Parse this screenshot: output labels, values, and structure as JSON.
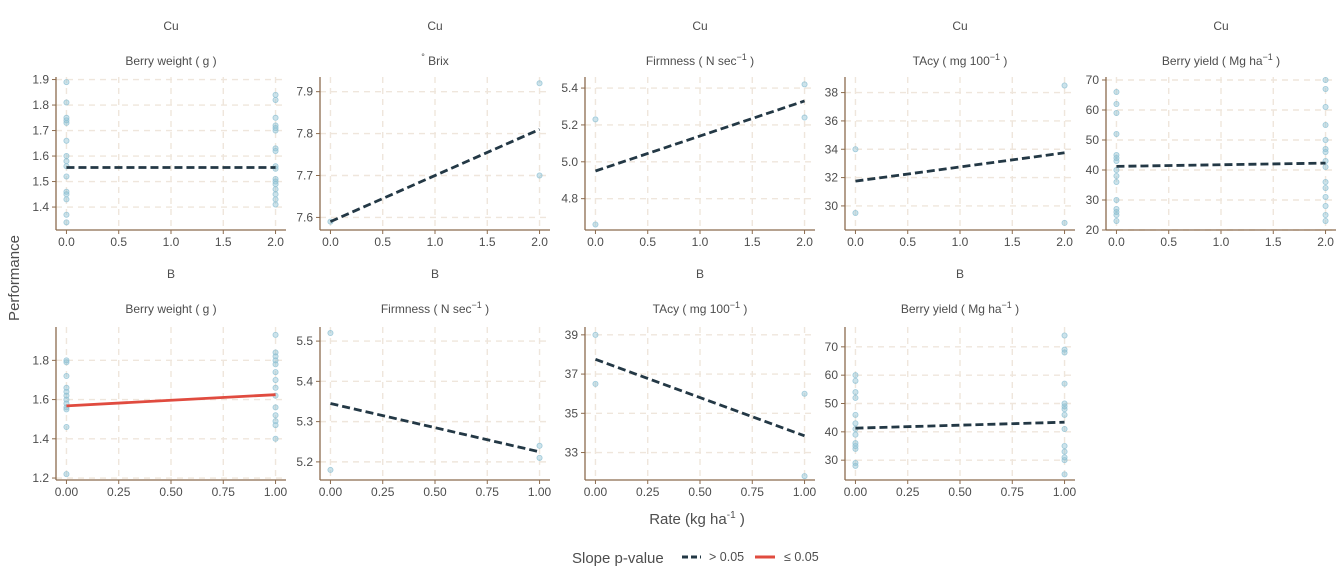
{
  "chart_data": {
    "type": "scatter",
    "y_axis_title": "Performance",
    "x_axis_title": {
      "main": "Rate (kg ha",
      "sup": "-1",
      "tail": ")"
    },
    "legend": {
      "title": "Slope p-value",
      "items": [
        {
          "label": "> 0.05",
          "color": "#233845"
        },
        {
          "label": "≤ 0.05",
          "color": "#e04b3f"
        }
      ],
      "position": "bottom"
    },
    "point_color": "#8fc1d3",
    "grid_color": "#efe6dc",
    "axis_color": "#8b6b4e",
    "panels": [
      {
        "row": 0,
        "col": 0,
        "element": "Cu",
        "label": {
          "parts": [
            {
              "t": "Berry weight  (  g  )"
            }
          ]
        },
        "xlim": [
          -0.1,
          2.1
        ],
        "ylim": [
          1.31,
          1.91
        ],
        "xticks": [
          0,
          0.5,
          1,
          1.5,
          2
        ],
        "xtick_labels": [
          "0.0",
          "0.5",
          "1.0",
          "1.5",
          "2.0"
        ],
        "yticks": [
          1.4,
          1.5,
          1.6,
          1.7,
          1.8,
          1.9
        ],
        "ytick_labels": [
          "1.4",
          "1.5",
          "1.6",
          "1.7",
          "1.8",
          "1.9"
        ],
        "points": [
          [
            0,
            1.89
          ],
          [
            0,
            1.81
          ],
          [
            0,
            1.75
          ],
          [
            0,
            1.74
          ],
          [
            0,
            1.73
          ],
          [
            0,
            1.66
          ],
          [
            0,
            1.6
          ],
          [
            0,
            1.58
          ],
          [
            0,
            1.56
          ],
          [
            0,
            1.52
          ],
          [
            0,
            1.46
          ],
          [
            0,
            1.45
          ],
          [
            0,
            1.43
          ],
          [
            0,
            1.37
          ],
          [
            0,
            1.34
          ],
          [
            2,
            1.84
          ],
          [
            2,
            1.82
          ],
          [
            2,
            1.75
          ],
          [
            2,
            1.72
          ],
          [
            2,
            1.71
          ],
          [
            2,
            1.7
          ],
          [
            2,
            1.63
          ],
          [
            2,
            1.62
          ],
          [
            2,
            1.56
          ],
          [
            2,
            1.55
          ],
          [
            2,
            1.51
          ],
          [
            2,
            1.5
          ],
          [
            2,
            1.49
          ],
          [
            2,
            1.47
          ],
          [
            2,
            1.45
          ],
          [
            2,
            1.43
          ],
          [
            2,
            1.41
          ]
        ],
        "fit": {
          "x": [
            0,
            2
          ],
          "y": [
            1.555,
            1.555
          ],
          "significant": false
        }
      },
      {
        "row": 0,
        "col": 1,
        "element": "Cu",
        "label": {
          "parts": [
            {
              "t": "°",
              "sup": true
            },
            {
              "t": " Brix"
            }
          ]
        },
        "xlim": [
          -0.1,
          2.1
        ],
        "ylim": [
          7.57,
          7.935
        ],
        "xticks": [
          0,
          0.5,
          1,
          1.5,
          2
        ],
        "xtick_labels": [
          "0.0",
          "0.5",
          "1.0",
          "1.5",
          "2.0"
        ],
        "yticks": [
          7.6,
          7.7,
          7.8,
          7.9
        ],
        "ytick_labels": [
          "7.6",
          "7.7",
          "7.8",
          "7.9"
        ],
        "points": [
          [
            0,
            7.59
          ],
          [
            2,
            7.92
          ],
          [
            2,
            7.7
          ]
        ],
        "fit": {
          "x": [
            0,
            2
          ],
          "y": [
            7.59,
            7.81
          ],
          "significant": false
        }
      },
      {
        "row": 0,
        "col": 2,
        "element": "Cu",
        "label": {
          "parts": [
            {
              "t": "Firmness  (  N  sec"
            },
            {
              "t": "−1",
              "sup": true
            },
            {
              "t": "  )"
            }
          ]
        },
        "xlim": [
          -0.1,
          2.1
        ],
        "ylim": [
          4.63,
          5.46
        ],
        "xticks": [
          0,
          0.5,
          1,
          1.5,
          2
        ],
        "xtick_labels": [
          "0.0",
          "0.5",
          "1.0",
          "1.5",
          "2.0"
        ],
        "yticks": [
          4.8,
          5.0,
          5.2,
          5.4
        ],
        "ytick_labels": [
          "4.8",
          "5.0",
          "5.2",
          "5.4"
        ],
        "points": [
          [
            0,
            5.23
          ],
          [
            0,
            4.66
          ],
          [
            2,
            5.42
          ],
          [
            2,
            5.24
          ]
        ],
        "fit": {
          "x": [
            0,
            2
          ],
          "y": [
            4.95,
            5.33
          ],
          "significant": false
        }
      },
      {
        "row": 0,
        "col": 3,
        "element": "Cu",
        "label": {
          "parts": [
            {
              "t": "TAcy  (  mg  100"
            },
            {
              "t": "−1",
              "sup": true
            },
            {
              "t": "  )"
            }
          ]
        },
        "xlim": [
          -0.1,
          2.1
        ],
        "ylim": [
          28.3,
          39.1
        ],
        "xticks": [
          0,
          0.5,
          1,
          1.5,
          2
        ],
        "xtick_labels": [
          "0.0",
          "0.5",
          "1.0",
          "1.5",
          "2.0"
        ],
        "yticks": [
          30,
          32,
          34,
          36,
          38
        ],
        "ytick_labels": [
          "30",
          "32",
          "34",
          "36",
          "38"
        ],
        "points": [
          [
            0,
            34
          ],
          [
            0,
            29.5
          ],
          [
            2,
            38.5
          ],
          [
            2,
            28.8
          ]
        ],
        "fit": {
          "x": [
            0,
            2
          ],
          "y": [
            31.75,
            33.75
          ],
          "significant": false
        }
      },
      {
        "row": 0,
        "col": 4,
        "element": "Cu",
        "label": {
          "parts": [
            {
              "t": "Berry yield  (  Mg  ha"
            },
            {
              "t": "−1",
              "sup": true
            },
            {
              "t": "  )"
            }
          ]
        },
        "xlim": [
          -0.1,
          2.1
        ],
        "ylim": [
          20,
          71
        ],
        "xticks": [
          0,
          0.5,
          1,
          1.5,
          2
        ],
        "xtick_labels": [
          "0.0",
          "0.5",
          "1.0",
          "1.5",
          "2.0"
        ],
        "yticks": [
          20,
          30,
          40,
          50,
          60,
          70
        ],
        "ytick_labels": [
          "20",
          "30",
          "40",
          "50",
          "60",
          "70"
        ],
        "points": [
          [
            0,
            66
          ],
          [
            0,
            62
          ],
          [
            0,
            59
          ],
          [
            0,
            52
          ],
          [
            0,
            45
          ],
          [
            0,
            44
          ],
          [
            0,
            43
          ],
          [
            0,
            40
          ],
          [
            0,
            38
          ],
          [
            0,
            36
          ],
          [
            0,
            30
          ],
          [
            0,
            27
          ],
          [
            0,
            26
          ],
          [
            0,
            25
          ],
          [
            0,
            23
          ],
          [
            2,
            70
          ],
          [
            2,
            67
          ],
          [
            2,
            61
          ],
          [
            2,
            55
          ],
          [
            2,
            50
          ],
          [
            2,
            47
          ],
          [
            2,
            46
          ],
          [
            2,
            43
          ],
          [
            2,
            41
          ],
          [
            2,
            36
          ],
          [
            2,
            34
          ],
          [
            2,
            31
          ],
          [
            2,
            28
          ],
          [
            2,
            25
          ],
          [
            2,
            23
          ]
        ],
        "fit": {
          "x": [
            0,
            2
          ],
          "y": [
            41.2,
            42.3
          ],
          "significant": false
        }
      },
      {
        "row": 1,
        "col": 0,
        "element": "B",
        "label": {
          "parts": [
            {
              "t": "Berry weight  (  g  )"
            }
          ]
        },
        "xlim": [
          -0.05,
          1.05
        ],
        "ylim": [
          1.19,
          1.97
        ],
        "xticks": [
          0,
          0.25,
          0.5,
          0.75,
          1
        ],
        "xtick_labels": [
          "0.00",
          "0.25",
          "0.50",
          "0.75",
          "1.00"
        ],
        "yticks": [
          1.2,
          1.4,
          1.6,
          1.8
        ],
        "ytick_labels": [
          "1.2",
          "1.4",
          "1.6",
          "1.8"
        ],
        "points": [
          [
            0,
            1.8
          ],
          [
            0,
            1.79
          ],
          [
            0,
            1.72
          ],
          [
            0,
            1.66
          ],
          [
            0,
            1.64
          ],
          [
            0,
            1.62
          ],
          [
            0,
            1.6
          ],
          [
            0,
            1.58
          ],
          [
            0,
            1.56
          ],
          [
            0,
            1.55
          ],
          [
            0,
            1.46
          ],
          [
            0,
            1.22
          ],
          [
            1,
            1.93
          ],
          [
            1,
            1.84
          ],
          [
            1,
            1.82
          ],
          [
            1,
            1.8
          ],
          [
            1,
            1.78
          ],
          [
            1,
            1.74
          ],
          [
            1,
            1.7
          ],
          [
            1,
            1.66
          ],
          [
            1,
            1.62
          ],
          [
            1,
            1.56
          ],
          [
            1,
            1.52
          ],
          [
            1,
            1.49
          ],
          [
            1,
            1.47
          ],
          [
            1,
            1.4
          ]
        ],
        "fit": {
          "x": [
            0,
            1
          ],
          "y": [
            1.568,
            1.625
          ],
          "significant": true
        }
      },
      {
        "row": 1,
        "col": 1,
        "element": "B",
        "label": {
          "parts": [
            {
              "t": "Firmness  (  N  sec"
            },
            {
              "t": "−1",
              "sup": true
            },
            {
              "t": "  )"
            }
          ]
        },
        "xlim": [
          -0.05,
          1.05
        ],
        "ylim": [
          5.155,
          5.535
        ],
        "xticks": [
          0,
          0.25,
          0.5,
          0.75,
          1
        ],
        "xtick_labels": [
          "0.00",
          "0.25",
          "0.50",
          "0.75",
          "1.00"
        ],
        "yticks": [
          5.2,
          5.3,
          5.4,
          5.5
        ],
        "ytick_labels": [
          "5.2",
          "5.3",
          "5.4",
          "5.5"
        ],
        "points": [
          [
            0,
            5.52
          ],
          [
            0,
            5.18
          ],
          [
            1,
            5.24
          ],
          [
            1,
            5.21
          ]
        ],
        "fit": {
          "x": [
            0,
            1
          ],
          "y": [
            5.345,
            5.225
          ],
          "significant": false
        }
      },
      {
        "row": 1,
        "col": 2,
        "element": "B",
        "label": {
          "parts": [
            {
              "t": "TAcy  (  mg  100"
            },
            {
              "t": "−1",
              "sup": true
            },
            {
              "t": "  )"
            }
          ]
        },
        "xlim": [
          -0.05,
          1.05
        ],
        "ylim": [
          31.6,
          39.4
        ],
        "xticks": [
          0,
          0.25,
          0.5,
          0.75,
          1
        ],
        "xtick_labels": [
          "0.00",
          "0.25",
          "0.50",
          "0.75",
          "1.00"
        ],
        "yticks": [
          33,
          35,
          37,
          39
        ],
        "ytick_labels": [
          "33",
          "35",
          "37",
          "39"
        ],
        "points": [
          [
            0,
            39
          ],
          [
            0,
            36.5
          ],
          [
            1,
            36
          ],
          [
            1,
            31.8
          ]
        ],
        "fit": {
          "x": [
            0,
            1
          ],
          "y": [
            37.75,
            33.85
          ],
          "significant": false
        }
      },
      {
        "row": 1,
        "col": 3,
        "element": "B",
        "label": {
          "parts": [
            {
              "t": "Berry yield  (  Mg  ha"
            },
            {
              "t": "−1",
              "sup": true
            },
            {
              "t": "  )"
            }
          ]
        },
        "xlim": [
          -0.05,
          1.05
        ],
        "ylim": [
          23,
          77
        ],
        "xticks": [
          0,
          0.25,
          0.5,
          0.75,
          1
        ],
        "xtick_labels": [
          "0.00",
          "0.25",
          "0.50",
          "0.75",
          "1.00"
        ],
        "yticks": [
          30,
          40,
          50,
          60,
          70
        ],
        "ytick_labels": [
          "30",
          "40",
          "50",
          "60",
          "70"
        ],
        "points": [
          [
            0,
            60
          ],
          [
            0,
            58
          ],
          [
            0,
            54
          ],
          [
            0,
            52
          ],
          [
            0,
            46
          ],
          [
            0,
            43
          ],
          [
            0,
            41
          ],
          [
            0,
            39
          ],
          [
            0,
            36
          ],
          [
            0,
            35
          ],
          [
            0,
            34
          ],
          [
            0,
            29
          ],
          [
            0,
            28
          ],
          [
            1,
            74
          ],
          [
            1,
            69
          ],
          [
            1,
            68
          ],
          [
            1,
            57
          ],
          [
            1,
            50
          ],
          [
            1,
            49
          ],
          [
            1,
            48
          ],
          [
            1,
            46
          ],
          [
            1,
            41
          ],
          [
            1,
            35
          ],
          [
            1,
            33
          ],
          [
            1,
            31
          ],
          [
            1,
            30
          ],
          [
            1,
            25
          ]
        ],
        "fit": {
          "x": [
            0,
            1
          ],
          "y": [
            41.3,
            43.4
          ],
          "significant": false
        }
      }
    ]
  }
}
